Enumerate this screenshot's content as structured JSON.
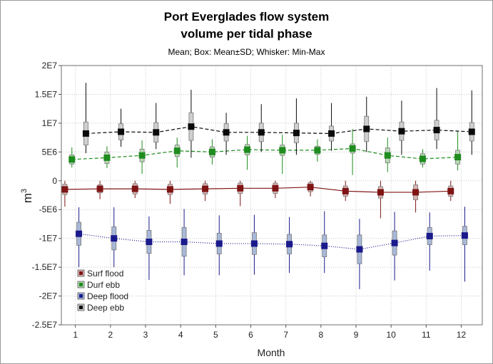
{
  "chart_data": {
    "type": "box",
    "title": "Port Everglades flow system",
    "title_line2": "volume per tidal phase",
    "subtitle": "Mean; Box: Mean±SD; Whisker: Min-Max",
    "xlabel": "Month",
    "ylabel": "m",
    "ylabel_superscript": "3",
    "x_ticks": [
      "1",
      "2",
      "3",
      "4",
      "5",
      "6",
      "7",
      "8",
      "9",
      "10",
      "11",
      "12"
    ],
    "y_ticks": [
      {
        "value": 20000000,
        "label": "2E7"
      },
      {
        "value": 15000000,
        "label": "1.5E7"
      },
      {
        "value": 10000000,
        "label": "1E7"
      },
      {
        "value": 5000000,
        "label": "5E6"
      },
      {
        "value": 0,
        "label": "0"
      },
      {
        "value": -5000000,
        "label": "-5E6"
      },
      {
        "value": -10000000,
        "label": "-1E7"
      },
      {
        "value": -15000000,
        "label": "-1.5E7"
      },
      {
        "value": -20000000,
        "label": "-2E7"
      },
      {
        "value": -25000000,
        "label": "-2.5E7"
      }
    ],
    "ylim": [
      -25000000,
      20000000
    ],
    "legend_position": "bottom-left",
    "series": [
      {
        "name": "Surf flood",
        "color": "#7f1414",
        "line_style": "solid",
        "months": [
          1,
          2,
          3,
          4,
          5,
          6,
          7,
          8,
          9,
          10,
          11,
          12
        ],
        "mean": [
          -1500000,
          -1400000,
          -1400000,
          -1500000,
          -1400000,
          -1300000,
          -1300000,
          -1100000,
          -1800000,
          -2000000,
          -2000000,
          -1800000
        ],
        "sd": [
          900000,
          700000,
          900000,
          900000,
          900000,
          900000,
          900000,
          800000,
          900000,
          1000000,
          1300000,
          900000
        ],
        "min": [
          -4500000,
          -3200000,
          -3000000,
          -4000000,
          -3500000,
          -4400000,
          -3000000,
          -2700000,
          -3500000,
          -6500000,
          -5500000,
          -3500000
        ],
        "max": [
          0,
          0,
          0,
          0,
          0,
          0,
          0,
          0,
          0,
          0,
          0,
          0
        ]
      },
      {
        "name": "Durf ebb",
        "color": "#1e8c1e",
        "line_style": "dashed",
        "months": [
          1,
          2,
          3,
          4,
          5,
          6,
          7,
          8,
          9,
          10,
          11,
          12
        ],
        "mean": [
          3700000,
          4000000,
          4400000,
          5200000,
          5000000,
          5400000,
          5300000,
          5300000,
          5600000,
          4400000,
          3800000,
          4100000
        ],
        "sd": [
          800000,
          1000000,
          1100000,
          1000000,
          900000,
          900000,
          900000,
          700000,
          800000,
          1300000,
          900000,
          1200000
        ],
        "min": [
          2300000,
          2200000,
          1200000,
          2300000,
          2800000,
          1900000,
          1200000,
          3300000,
          1000000,
          1500000,
          2300000,
          1800000
        ],
        "max": [
          5800000,
          6000000,
          7000000,
          7500000,
          7200000,
          7800000,
          8000000,
          7200000,
          9000000,
          7500000,
          5500000,
          8600000
        ]
      },
      {
        "name": "Deep flood",
        "color": "#1a1a8c",
        "line_style": "dotted",
        "months": [
          1,
          2,
          3,
          4,
          5,
          6,
          7,
          8,
          9,
          10,
          11,
          12
        ],
        "mean": [
          -9200000,
          -10000000,
          -10600000,
          -10600000,
          -10900000,
          -10900000,
          -11000000,
          -11300000,
          -11900000,
          -10800000,
          -9600000,
          -9500000
        ],
        "sd": [
          2000000,
          2000000,
          2000000,
          2500000,
          1800000,
          1900000,
          1700000,
          1900000,
          2500000,
          2100000,
          1500000,
          1600000
        ],
        "min": [
          -15000000,
          -15000000,
          -17200000,
          -16400000,
          -16400000,
          -16300000,
          -16000000,
          -16000000,
          -18800000,
          -17300000,
          -15600000,
          -17500000
        ],
        "max": [
          -4600000,
          -4600000,
          -6200000,
          -4900000,
          -6000000,
          -5900000,
          -6300000,
          -5300000,
          -6600000,
          -5400000,
          -5500000,
          -4500000
        ]
      },
      {
        "name": "Deep ebb",
        "color": "#0a0a0a",
        "line_style": "dashed",
        "months": [
          1,
          2,
          3,
          4,
          5,
          6,
          7,
          8,
          9,
          10,
          11,
          12
        ],
        "mean": [
          8200000,
          8500000,
          8400000,
          9400000,
          8400000,
          8400000,
          8300000,
          8200000,
          9000000,
          8600000,
          8800000,
          8500000
        ],
        "sd": [
          2000000,
          1400000,
          1700000,
          2400000,
          1500000,
          1600000,
          1700000,
          1300000,
          2200000,
          1600000,
          1700000,
          1600000
        ],
        "min": [
          4800000,
          5900000,
          5500000,
          4000000,
          4500000,
          5000000,
          4500000,
          5200000,
          5000000,
          4500000,
          5500000,
          4500000
        ],
        "max": [
          17000000,
          12500000,
          13500000,
          15800000,
          11800000,
          13300000,
          14300000,
          13500000,
          14600000,
          13900000,
          16100000,
          15700000
        ]
      }
    ]
  }
}
